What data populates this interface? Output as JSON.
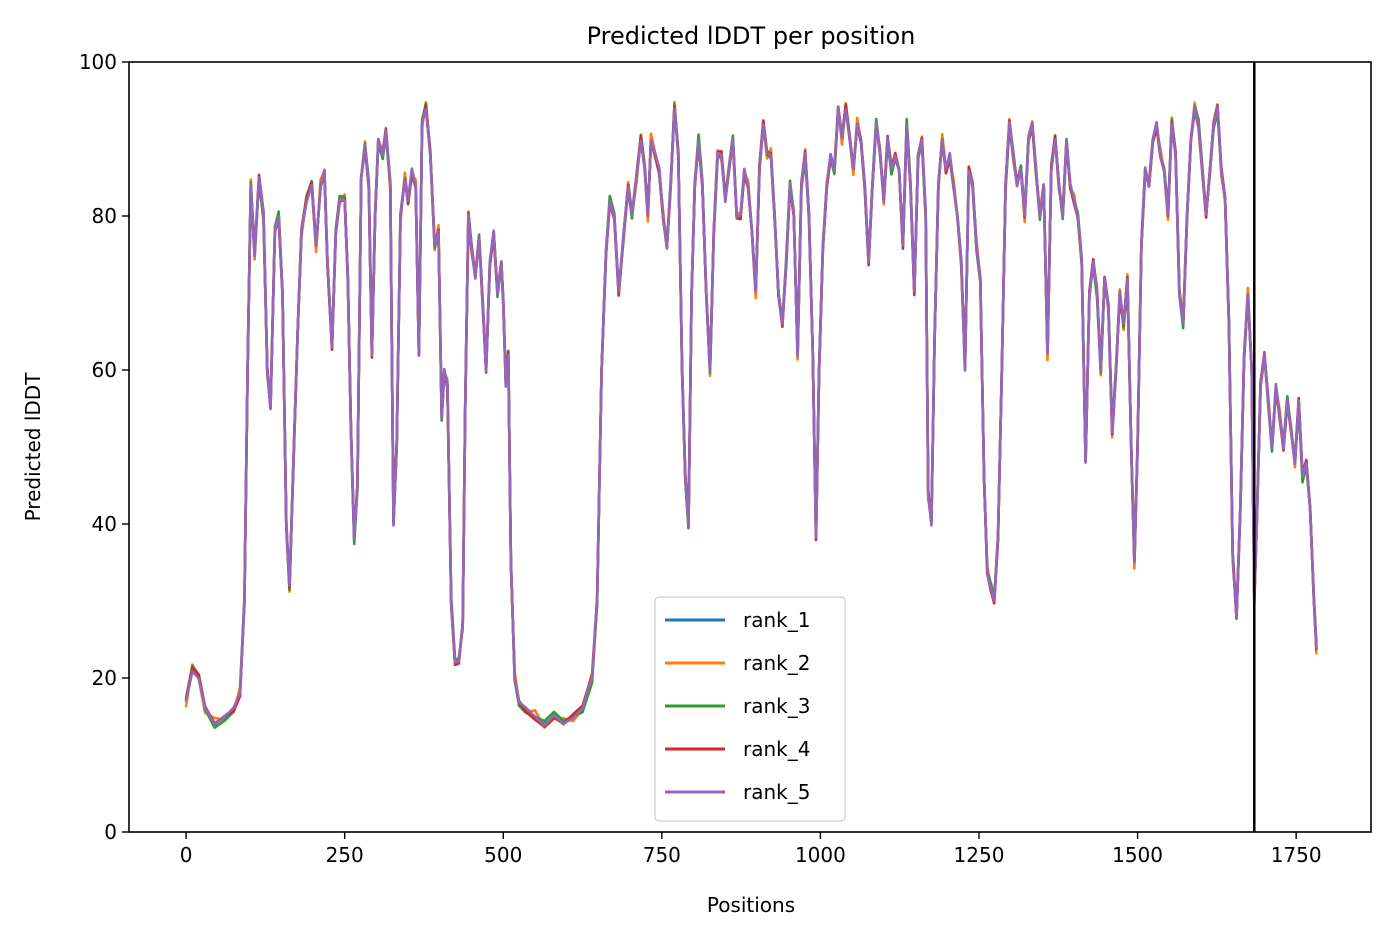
{
  "chart_data": {
    "type": "line",
    "title": "Predicted lDDT per position",
    "xlabel": "Positions",
    "ylabel": "Predicted lDDT",
    "xlim": [
      -90,
      1868
    ],
    "ylim": [
      0,
      100
    ],
    "xticks": [
      0,
      250,
      500,
      750,
      1000,
      1250,
      1500,
      1750
    ],
    "yticks": [
      0,
      20,
      40,
      60,
      80,
      100
    ],
    "grid": false,
    "legend_position": "bottom-center",
    "vline_x": 1684,
    "series_base": [
      [
        0,
        17
      ],
      [
        10,
        21
      ],
      [
        20,
        20
      ],
      [
        30,
        16
      ],
      [
        45,
        14
      ],
      [
        60,
        15
      ],
      [
        75,
        16
      ],
      [
        85,
        18
      ],
      [
        92,
        30
      ],
      [
        97,
        60
      ],
      [
        102,
        84
      ],
      [
        108,
        75
      ],
      [
        115,
        85
      ],
      [
        122,
        80
      ],
      [
        128,
        60
      ],
      [
        133,
        55
      ],
      [
        140,
        78
      ],
      [
        146,
        80
      ],
      [
        152,
        70
      ],
      [
        158,
        40
      ],
      [
        163,
        32
      ],
      [
        170,
        50
      ],
      [
        176,
        65
      ],
      [
        182,
        78
      ],
      [
        190,
        82
      ],
      [
        198,
        84
      ],
      [
        205,
        76
      ],
      [
        212,
        84
      ],
      [
        218,
        86
      ],
      [
        223,
        74
      ],
      [
        230,
        63
      ],
      [
        236,
        78
      ],
      [
        242,
        82
      ],
      [
        250,
        82
      ],
      [
        255,
        72
      ],
      [
        260,
        52
      ],
      [
        265,
        38
      ],
      [
        270,
        45
      ],
      [
        276,
        85
      ],
      [
        282,
        89
      ],
      [
        288,
        84
      ],
      [
        293,
        62
      ],
      [
        298,
        80
      ],
      [
        303,
        90
      ],
      [
        310,
        88
      ],
      [
        315,
        91
      ],
      [
        322,
        84
      ],
      [
        327,
        40
      ],
      [
        332,
        50
      ],
      [
        338,
        80
      ],
      [
        345,
        85
      ],
      [
        350,
        82
      ],
      [
        356,
        86
      ],
      [
        362,
        84
      ],
      [
        367,
        62
      ],
      [
        372,
        92
      ],
      [
        378,
        94
      ],
      [
        385,
        88
      ],
      [
        392,
        76
      ],
      [
        398,
        78
      ],
      [
        403,
        54
      ],
      [
        407,
        60
      ],
      [
        412,
        58
      ],
      [
        418,
        30
      ],
      [
        424,
        22
      ],
      [
        430,
        22
      ],
      [
        436,
        27
      ],
      [
        440,
        55
      ],
      [
        445,
        80
      ],
      [
        450,
        76
      ],
      [
        456,
        72
      ],
      [
        462,
        77
      ],
      [
        468,
        68
      ],
      [
        473,
        60
      ],
      [
        479,
        74
      ],
      [
        485,
        78
      ],
      [
        491,
        70
      ],
      [
        497,
        74
      ],
      [
        500,
        69
      ],
      [
        504,
        58
      ],
      [
        508,
        62
      ],
      [
        512,
        35
      ],
      [
        518,
        20
      ],
      [
        525,
        17
      ],
      [
        535,
        16
      ],
      [
        550,
        15
      ],
      [
        565,
        14
      ],
      [
        580,
        15
      ],
      [
        595,
        14
      ],
      [
        610,
        15
      ],
      [
        625,
        16
      ],
      [
        640,
        20
      ],
      [
        648,
        30
      ],
      [
        655,
        60
      ],
      [
        662,
        75
      ],
      [
        668,
        82
      ],
      [
        675,
        80
      ],
      [
        682,
        70
      ],
      [
        690,
        78
      ],
      [
        697,
        84
      ],
      [
        703,
        80
      ],
      [
        710,
        85
      ],
      [
        717,
        90
      ],
      [
        723,
        86
      ],
      [
        728,
        80
      ],
      [
        733,
        90
      ],
      [
        740,
        88
      ],
      [
        746,
        86
      ],
      [
        752,
        80
      ],
      [
        758,
        76
      ],
      [
        764,
        84
      ],
      [
        770,
        94
      ],
      [
        776,
        88
      ],
      [
        782,
        60
      ],
      [
        787,
        46
      ],
      [
        792,
        40
      ],
      [
        797,
        70
      ],
      [
        802,
        84
      ],
      [
        808,
        90
      ],
      [
        814,
        84
      ],
      [
        820,
        70
      ],
      [
        826,
        60
      ],
      [
        832,
        78
      ],
      [
        838,
        88
      ],
      [
        844,
        88
      ],
      [
        850,
        82
      ],
      [
        856,
        86
      ],
      [
        862,
        90
      ],
      [
        868,
        80
      ],
      [
        874,
        80
      ],
      [
        880,
        86
      ],
      [
        886,
        84
      ],
      [
        892,
        78
      ],
      [
        898,
        70
      ],
      [
        904,
        86
      ],
      [
        910,
        92
      ],
      [
        916,
        88
      ],
      [
        922,
        88
      ],
      [
        928,
        80
      ],
      [
        934,
        70
      ],
      [
        940,
        66
      ],
      [
        946,
        74
      ],
      [
        952,
        84
      ],
      [
        958,
        80
      ],
      [
        964,
        62
      ],
      [
        970,
        84
      ],
      [
        976,
        88
      ],
      [
        982,
        80
      ],
      [
        988,
        62
      ],
      [
        993,
        38
      ],
      [
        998,
        60
      ],
      [
        1004,
        76
      ],
      [
        1010,
        84
      ],
      [
        1016,
        88
      ],
      [
        1022,
        86
      ],
      [
        1028,
        94
      ],
      [
        1034,
        90
      ],
      [
        1040,
        94
      ],
      [
        1046,
        90
      ],
      [
        1052,
        86
      ],
      [
        1058,
        92
      ],
      [
        1064,
        90
      ],
      [
        1070,
        84
      ],
      [
        1076,
        74
      ],
      [
        1082,
        84
      ],
      [
        1088,
        92
      ],
      [
        1094,
        88
      ],
      [
        1100,
        82
      ],
      [
        1106,
        90
      ],
      [
        1112,
        86
      ],
      [
        1118,
        88
      ],
      [
        1124,
        86
      ],
      [
        1130,
        76
      ],
      [
        1136,
        92
      ],
      [
        1142,
        84
      ],
      [
        1148,
        70
      ],
      [
        1154,
        88
      ],
      [
        1160,
        90
      ],
      [
        1166,
        80
      ],
      [
        1170,
        44
      ],
      [
        1175,
        40
      ],
      [
        1180,
        64
      ],
      [
        1186,
        84
      ],
      [
        1192,
        90
      ],
      [
        1198,
        86
      ],
      [
        1204,
        88
      ],
      [
        1210,
        84
      ],
      [
        1216,
        80
      ],
      [
        1222,
        74
      ],
      [
        1228,
        60
      ],
      [
        1234,
        86
      ],
      [
        1240,
        84
      ],
      [
        1246,
        76
      ],
      [
        1252,
        72
      ],
      [
        1258,
        46
      ],
      [
        1263,
        34
      ],
      [
        1268,
        32
      ],
      [
        1274,
        30
      ],
      [
        1280,
        38
      ],
      [
        1286,
        60
      ],
      [
        1292,
        84
      ],
      [
        1298,
        92
      ],
      [
        1304,
        88
      ],
      [
        1310,
        84
      ],
      [
        1316,
        86
      ],
      [
        1322,
        80
      ],
      [
        1328,
        90
      ],
      [
        1334,
        92
      ],
      [
        1340,
        86
      ],
      [
        1346,
        80
      ],
      [
        1352,
        84
      ],
      [
        1358,
        62
      ],
      [
        1364,
        86
      ],
      [
        1370,
        90
      ],
      [
        1376,
        84
      ],
      [
        1382,
        80
      ],
      [
        1388,
        90
      ],
      [
        1394,
        84
      ],
      [
        1400,
        82
      ],
      [
        1406,
        80
      ],
      [
        1412,
        74
      ],
      [
        1418,
        48
      ],
      [
        1424,
        70
      ],
      [
        1430,
        74
      ],
      [
        1436,
        70
      ],
      [
        1442,
        60
      ],
      [
        1448,
        72
      ],
      [
        1454,
        68
      ],
      [
        1460,
        52
      ],
      [
        1466,
        60
      ],
      [
        1472,
        70
      ],
      [
        1478,
        66
      ],
      [
        1484,
        72
      ],
      [
        1490,
        50
      ],
      [
        1495,
        35
      ],
      [
        1500,
        50
      ],
      [
        1506,
        76
      ],
      [
        1512,
        86
      ],
      [
        1518,
        84
      ],
      [
        1524,
        90
      ],
      [
        1530,
        92
      ],
      [
        1536,
        88
      ],
      [
        1542,
        86
      ],
      [
        1548,
        80
      ],
      [
        1554,
        92
      ],
      [
        1560,
        88
      ],
      [
        1566,
        70
      ],
      [
        1572,
        66
      ],
      [
        1578,
        80
      ],
      [
        1584,
        90
      ],
      [
        1590,
        94
      ],
      [
        1596,
        92
      ],
      [
        1602,
        86
      ],
      [
        1608,
        80
      ],
      [
        1614,
        86
      ],
      [
        1620,
        92
      ],
      [
        1626,
        94
      ],
      [
        1632,
        86
      ],
      [
        1638,
        82
      ],
      [
        1644,
        66
      ],
      [
        1650,
        36
      ],
      [
        1656,
        28
      ],
      [
        1662,
        42
      ],
      [
        1668,
        62
      ],
      [
        1674,
        70
      ],
      [
        1680,
        60
      ],
      [
        1684,
        30
      ],
      [
        1688,
        40
      ],
      [
        1694,
        58
      ],
      [
        1700,
        62
      ],
      [
        1706,
        56
      ],
      [
        1712,
        50
      ],
      [
        1718,
        58
      ],
      [
        1724,
        54
      ],
      [
        1730,
        50
      ],
      [
        1736,
        56
      ],
      [
        1742,
        52
      ],
      [
        1748,
        48
      ],
      [
        1754,
        56
      ],
      [
        1760,
        46
      ],
      [
        1766,
        48
      ],
      [
        1772,
        42
      ],
      [
        1778,
        30
      ],
      [
        1782,
        24
      ]
    ],
    "series": [
      {
        "name": "rank_1",
        "color": "#1f77b4",
        "offset": 0.0
      },
      {
        "name": "rank_2",
        "color": "#ff7f0e",
        "offset": 0.8
      },
      {
        "name": "rank_3",
        "color": "#2ca02c",
        "offset": -0.6
      },
      {
        "name": "rank_4",
        "color": "#d62728",
        "offset": 0.4
      },
      {
        "name": "rank_5",
        "color": "#9467bd",
        "offset": 0.2
      }
    ]
  }
}
